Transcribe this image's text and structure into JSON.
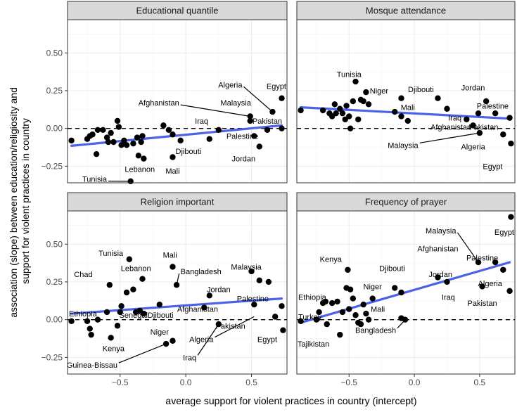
{
  "chart_data": {
    "type": "scatter",
    "xlabel": "average support for violent practices in country (intercept)",
    "ylabel": "association (slope) between education/religiosity and support for violent practices in country",
    "xlim": [
      -0.9,
      0.77
    ],
    "ylim": [
      -0.36,
      0.72
    ],
    "x_ticks": [
      -0.5,
      0.0,
      0.5
    ],
    "x_tick_labels": [
      "−0.5",
      "0.0",
      "0.5"
    ],
    "y_ticks": [
      -0.25,
      0.0,
      0.25,
      0.5
    ],
    "y_tick_labels": [
      "−0.25",
      "0.00",
      "0.25",
      "0.50"
    ],
    "reference_line_y": 0,
    "grid": true,
    "panels": [
      {
        "title": "Educational quantile",
        "trend": [
          [
            -0.87,
            -0.115
          ],
          [
            0.73,
            0.02
          ]
        ],
        "points": [
          [
            -0.87,
            -0.08
          ],
          [
            -0.75,
            -0.07
          ],
          [
            -0.73,
            -0.05
          ],
          [
            -0.71,
            -0.04
          ],
          [
            -0.68,
            -0.17
          ],
          [
            -0.67,
            -0.01
          ],
          [
            -0.63,
            -0.01
          ],
          [
            -0.6,
            -0.06
          ],
          [
            -0.59,
            -0.09
          ],
          [
            -0.57,
            -0.03
          ],
          [
            -0.55,
            -0.09
          ],
          [
            -0.52,
            0.05
          ],
          [
            -0.51,
            0.01
          ],
          [
            -0.49,
            -0.11
          ],
          [
            -0.47,
            -0.08
          ],
          [
            -0.45,
            -0.11
          ],
          [
            -0.42,
            -0.35
          ],
          [
            -0.4,
            -0.1
          ],
          [
            -0.37,
            -0.06
          ],
          [
            -0.36,
            -0.18
          ],
          [
            -0.34,
            -0.09
          ],
          [
            -0.33,
            -0.05
          ],
          [
            -0.32,
            -0.2
          ],
          [
            -0.17,
            0.02
          ],
          [
            -0.13,
            -0.01
          ],
          [
            -0.1,
            -0.04
          ],
          [
            -0.1,
            -0.19
          ],
          [
            -0.04,
            -0.08
          ],
          [
            0.18,
            -0.07
          ],
          [
            0.25,
            -0.01
          ],
          [
            0.49,
            0.05
          ],
          [
            0.49,
            0.08
          ],
          [
            0.52,
            -0.05
          ],
          [
            0.56,
            -0.12
          ],
          [
            0.62,
            -0.01
          ],
          [
            0.66,
            0.11
          ],
          [
            0.73,
            0.2
          ],
          [
            0.73,
            0.0
          ]
        ],
        "labels": [
          {
            "text": "Tunisia",
            "x": -0.6,
            "y": -0.335,
            "px": -0.42,
            "py": -0.35
          },
          {
            "text": "Lebanon",
            "x": -0.35,
            "y": -0.27
          },
          {
            "text": "Mali",
            "x": -0.1,
            "y": -0.28
          },
          {
            "text": "Djibouti",
            "x": 0.02,
            "y": -0.15
          },
          {
            "text": "Iraq",
            "x": 0.12,
            "y": 0.05
          },
          {
            "text": "Afghanistan",
            "x": -0.05,
            "y": 0.17,
            "px": 0.49,
            "py": 0.08
          },
          {
            "text": "Malaysia",
            "x": 0.38,
            "y": 0.17
          },
          {
            "text": "Algeria",
            "x": 0.43,
            "y": 0.29,
            "px": 0.66,
            "py": 0.11
          },
          {
            "text": "Egypt",
            "x": 0.7,
            "y": 0.28
          },
          {
            "text": "Pakistan",
            "x": 0.62,
            "y": 0.05
          },
          {
            "text": "Palestine",
            "x": 0.43,
            "y": -0.05
          },
          {
            "text": "Jordan",
            "x": 0.44,
            "y": -0.2
          }
        ]
      },
      {
        "title": "Mosque attendance",
        "trend": [
          [
            -0.87,
            0.14
          ],
          [
            0.73,
            0.065
          ]
        ],
        "points": [
          [
            -0.87,
            0.12
          ],
          [
            -0.7,
            0.12
          ],
          [
            -0.65,
            0.1
          ],
          [
            -0.63,
            0.08
          ],
          [
            -0.61,
            0.16
          ],
          [
            -0.6,
            0.1
          ],
          [
            -0.57,
            0.13
          ],
          [
            -0.55,
            0.1
          ],
          [
            -0.53,
            0.06
          ],
          [
            -0.52,
            0.15
          ],
          [
            -0.5,
            0.08
          ],
          [
            -0.49,
            0.0
          ],
          [
            -0.47,
            0.18
          ],
          [
            -0.45,
            0.31
          ],
          [
            -0.43,
            0.06
          ],
          [
            -0.41,
            0.19
          ],
          [
            -0.39,
            0.18
          ],
          [
            -0.37,
            0.24
          ],
          [
            -0.35,
            0.16
          ],
          [
            -0.15,
            0.11
          ],
          [
            -0.1,
            0.2
          ],
          [
            -0.1,
            0.08
          ],
          [
            -0.05,
            0.05
          ],
          [
            0.18,
            0.2
          ],
          [
            0.25,
            0.13
          ],
          [
            0.4,
            0.06
          ],
          [
            0.45,
            0.02
          ],
          [
            0.49,
            0.1
          ],
          [
            0.5,
            -0.03
          ],
          [
            0.55,
            0.18
          ],
          [
            0.62,
            0.1
          ],
          [
            0.68,
            -0.04
          ],
          [
            0.73,
            0.07
          ],
          [
            0.74,
            -0.1
          ]
        ],
        "labels": [
          {
            "text": "Tunisia",
            "x": -0.5,
            "y": 0.36
          },
          {
            "text": "Niger",
            "x": -0.27,
            "y": 0.25
          },
          {
            "text": "Djibouti",
            "x": 0.05,
            "y": 0.26
          },
          {
            "text": "Jordan",
            "x": 0.45,
            "y": 0.27
          },
          {
            "text": "Mali",
            "x": -0.05,
            "y": 0.14
          },
          {
            "text": "Palestine",
            "x": 0.6,
            "y": 0.15
          },
          {
            "text": "Iraq",
            "x": 0.31,
            "y": 0.07
          },
          {
            "text": "Afghanistan",
            "x": 0.28,
            "y": 0.01
          },
          {
            "text": "Pakistan",
            "x": 0.53,
            "y": 0.01
          },
          {
            "text": "Malaysia",
            "x": 0.03,
            "y": -0.11,
            "px": 0.5,
            "py": -0.03
          },
          {
            "text": "Algeria",
            "x": 0.45,
            "y": -0.12
          },
          {
            "text": "Egypt",
            "x": 0.6,
            "y": -0.25
          }
        ]
      },
      {
        "title": "Religion important",
        "trend": [
          [
            -0.87,
            0.04
          ],
          [
            0.73,
            0.14
          ]
        ],
        "points": [
          [
            -0.87,
            -0.01
          ],
          [
            -0.75,
            -0.01
          ],
          [
            -0.73,
            -0.06
          ],
          [
            -0.72,
            -0.1
          ],
          [
            -0.67,
            0.0
          ],
          [
            -0.6,
            0.05
          ],
          [
            -0.58,
            0.23
          ],
          [
            -0.57,
            -0.12
          ],
          [
            -0.52,
            -0.04
          ],
          [
            -0.5,
            0.05
          ],
          [
            -0.49,
            0.09
          ],
          [
            -0.45,
            0.18
          ],
          [
            -0.43,
            0.4
          ],
          [
            -0.4,
            0.2
          ],
          [
            -0.38,
            0.05
          ],
          [
            -0.35,
            0.06
          ],
          [
            -0.33,
            0.27
          ],
          [
            -0.32,
            0.04
          ],
          [
            -0.2,
            0.1
          ],
          [
            -0.15,
            -0.16
          ],
          [
            -0.1,
            -0.14
          ],
          [
            -0.1,
            0.35
          ],
          [
            -0.07,
            0.23
          ],
          [
            0.14,
            0.08
          ],
          [
            0.18,
            0.16
          ],
          [
            0.25,
            -0.03
          ],
          [
            0.5,
            0.32
          ],
          [
            0.52,
            0.1
          ],
          [
            0.56,
            0.26
          ],
          [
            0.63,
            0.25
          ],
          [
            0.68,
            0.02
          ],
          [
            0.73,
            0.09
          ],
          [
            0.74,
            -0.07
          ]
        ],
        "labels": [
          {
            "text": "Tunisia",
            "x": -0.57,
            "y": 0.44
          },
          {
            "text": "Mali",
            "x": -0.12,
            "y": 0.43
          },
          {
            "text": "Chad",
            "x": -0.78,
            "y": 0.3
          },
          {
            "text": "Lebanon",
            "x": -0.38,
            "y": 0.34
          },
          {
            "text": "Bangladesh",
            "x": -0.04,
            "y": 0.32,
            "px": -0.07,
            "py": 0.23
          },
          {
            "text": "Jordan",
            "x": 0.25,
            "y": 0.2
          },
          {
            "text": "Malaysia",
            "x": 0.46,
            "y": 0.35
          },
          {
            "text": "Palestine",
            "x": 0.51,
            "y": 0.14
          },
          {
            "text": "Ethiopia",
            "x": -0.95,
            "y": 0.04
          },
          {
            "text": "SenegalDjibouti",
            "x": -0.3,
            "y": 0.03
          },
          {
            "text": "Afghanistan",
            "x": 0.09,
            "y": 0.07
          },
          {
            "text": "Kenya",
            "x": -0.55,
            "y": -0.19
          },
          {
            "text": "Niger",
            "x": -0.2,
            "y": -0.08
          },
          {
            "text": "Pakistan",
            "x": 0.34,
            "y": -0.04
          },
          {
            "text": "Guinea-Bissau",
            "x": -0.52,
            "y": -0.3,
            "px": -0.15,
            "py": -0.16
          },
          {
            "text": "Iraq",
            "x": 0.08,
            "y": -0.25,
            "px": 0.25,
            "py": -0.03
          },
          {
            "text": "Algeria",
            "x": 0.21,
            "y": -0.13,
            "px": 0.52,
            "py": 0.02
          },
          {
            "text": "Egypt",
            "x": 0.62,
            "y": -0.13
          }
        ]
      },
      {
        "title": "Frequency of prayer",
        "trend": [
          [
            -0.87,
            -0.02
          ],
          [
            0.73,
            0.38
          ]
        ],
        "points": [
          [
            -0.87,
            -0.01
          ],
          [
            -0.75,
            0.0
          ],
          [
            -0.73,
            0.05
          ],
          [
            -0.7,
            0.11
          ],
          [
            -0.68,
            0.12
          ],
          [
            -0.67,
            -0.03
          ],
          [
            -0.63,
            0.11
          ],
          [
            -0.59,
            0.12
          ],
          [
            -0.57,
            -0.1
          ],
          [
            -0.55,
            0.05
          ],
          [
            -0.52,
            0.21
          ],
          [
            -0.51,
            0.33
          ],
          [
            -0.5,
            0.07
          ],
          [
            -0.49,
            0.2
          ],
          [
            -0.47,
            0.14
          ],
          [
            -0.45,
            0.03
          ],
          [
            -0.43,
            -0.02
          ],
          [
            -0.41,
            -0.03
          ],
          [
            -0.39,
            0.1
          ],
          [
            -0.37,
            0.04
          ],
          [
            -0.35,
            0.0
          ],
          [
            -0.32,
            0.14
          ],
          [
            -0.15,
            0.21
          ],
          [
            -0.1,
            0.18
          ],
          [
            -0.1,
            0.01
          ],
          [
            -0.07,
            0.0
          ],
          [
            0.18,
            0.28
          ],
          [
            0.25,
            0.25
          ],
          [
            0.49,
            0.38
          ],
          [
            0.52,
            0.22
          ],
          [
            0.62,
            0.38
          ],
          [
            0.68,
            0.33
          ],
          [
            0.73,
            0.19
          ],
          [
            0.74,
            0.68
          ]
        ],
        "labels": [
          {
            "text": "Kenya",
            "x": -0.64,
            "y": 0.4
          },
          {
            "text": "Malaysia",
            "x": 0.32,
            "y": 0.59,
            "px": 0.49,
            "py": 0.38
          },
          {
            "text": "Egypt",
            "x": 0.72,
            "y": 0.58
          },
          {
            "text": "Afghanistan",
            "x": 0.18,
            "y": 0.47
          },
          {
            "text": "Palestine",
            "x": 0.52,
            "y": 0.41
          },
          {
            "text": "Djibouti",
            "x": -0.17,
            "y": 0.34
          },
          {
            "text": "Jordan",
            "x": 0.2,
            "y": 0.3
          },
          {
            "text": "Niger",
            "x": -0.32,
            "y": 0.22
          },
          {
            "text": "Algeria",
            "x": 0.58,
            "y": 0.24
          },
          {
            "text": "Iraq",
            "x": 0.26,
            "y": 0.15
          },
          {
            "text": "Pakistan",
            "x": 0.52,
            "y": 0.11
          },
          {
            "text": "Ethiopia",
            "x": -0.95,
            "y": 0.15
          },
          {
            "text": "Mali",
            "x": -0.28,
            "y": 0.07
          },
          {
            "text": "Turkey",
            "x": -0.95,
            "y": 0.02
          },
          {
            "text": "Bangladesh",
            "x": -0.14,
            "y": -0.07,
            "px": -0.07,
            "py": 0.0
          },
          {
            "text": "Tajikistan",
            "x": -0.74,
            "y": -0.16
          }
        ]
      }
    ]
  }
}
